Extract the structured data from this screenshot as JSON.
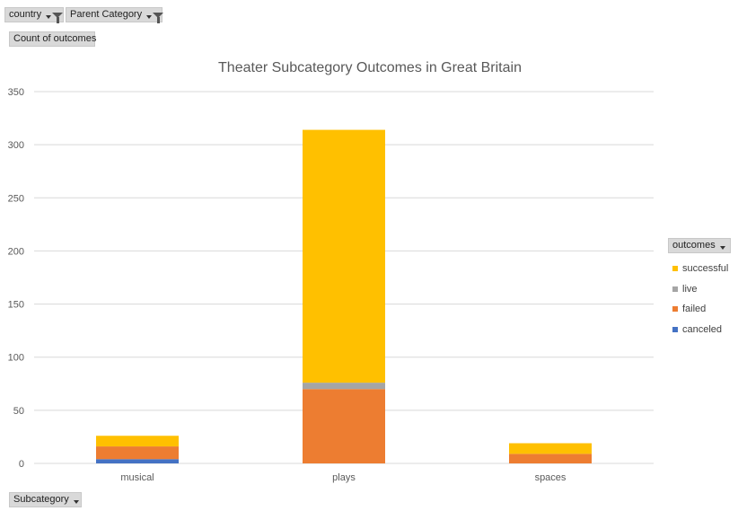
{
  "filters": {
    "country_label": "country",
    "parent_category_label": "Parent Category"
  },
  "values_field_label": "Count of outcomes",
  "axis_field_label": "Subcategory",
  "legend_field_label": "outcomes",
  "colors": {
    "successful": "#ffc000",
    "live": "#a5a5a5",
    "failed": "#ed7d31",
    "canceled": "#4472c4",
    "gridline": "#d9d9d9",
    "field_button": "#d9d9d9"
  },
  "chart_data": {
    "type": "bar",
    "stacked": true,
    "title": "Theater Subcategory Outcomes in Great Britain",
    "categories": [
      "musical",
      "plays",
      "spaces"
    ],
    "series": [
      {
        "name": "canceled",
        "values": [
          4,
          0,
          0
        ]
      },
      {
        "name": "failed",
        "values": [
          12,
          70,
          9
        ]
      },
      {
        "name": "live",
        "values": [
          0,
          6,
          0
        ]
      },
      {
        "name": "successful",
        "values": [
          10,
          238,
          10
        ]
      }
    ],
    "ylim": [
      0,
      350
    ],
    "yticks": [
      0,
      50,
      100,
      150,
      200,
      250,
      300,
      350
    ],
    "grid": true,
    "legend_position": "right",
    "legend_order": [
      "successful",
      "live",
      "failed",
      "canceled"
    ]
  }
}
